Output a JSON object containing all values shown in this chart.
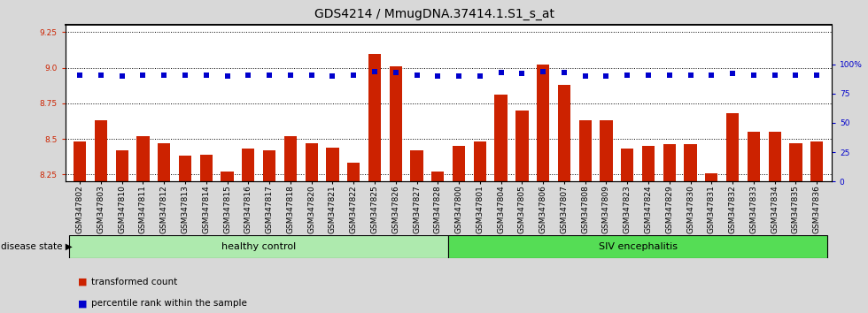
{
  "title": "GDS4214 / MmugDNA.37414.1.S1_s_at",
  "samples": [
    "GSM347802",
    "GSM347803",
    "GSM347810",
    "GSM347811",
    "GSM347812",
    "GSM347813",
    "GSM347814",
    "GSM347815",
    "GSM347816",
    "GSM347817",
    "GSM347818",
    "GSM347820",
    "GSM347821",
    "GSM347822",
    "GSM347825",
    "GSM347826",
    "GSM347827",
    "GSM347828",
    "GSM347800",
    "GSM347801",
    "GSM347804",
    "GSM347805",
    "GSM347806",
    "GSM347807",
    "GSM347808",
    "GSM347809",
    "GSM347823",
    "GSM347824",
    "GSM347829",
    "GSM347830",
    "GSM347831",
    "GSM347832",
    "GSM347833",
    "GSM347834",
    "GSM347835",
    "GSM347836"
  ],
  "bar_values": [
    8.48,
    8.63,
    8.42,
    8.52,
    8.47,
    8.38,
    8.39,
    8.27,
    8.43,
    8.42,
    8.52,
    8.47,
    8.44,
    8.33,
    9.1,
    9.01,
    8.42,
    8.27,
    8.45,
    8.48,
    8.81,
    8.7,
    9.02,
    8.88,
    8.63,
    8.63,
    8.43,
    8.45,
    8.46,
    8.46,
    8.26,
    8.68,
    8.55,
    8.55,
    8.47,
    8.48
  ],
  "percentile_values": [
    91,
    91,
    90,
    91,
    91,
    91,
    91,
    90,
    91,
    91,
    91,
    91,
    90,
    91,
    94,
    93,
    91,
    90,
    90,
    90,
    93,
    92,
    94,
    93,
    90,
    90,
    91,
    91,
    91,
    91,
    91,
    92,
    91,
    91,
    91,
    91
  ],
  "healthy_control_count": 18,
  "ylim_left": [
    8.2,
    9.3
  ],
  "ylim_right": [
    0,
    133.33
  ],
  "yticks_left": [
    8.25,
    8.5,
    8.75,
    9.0,
    9.25
  ],
  "yticks_right": [
    0,
    25,
    50,
    75,
    100
  ],
  "bar_color": "#cc2200",
  "percentile_color": "#0000cc",
  "healthy_color": "#aeeaae",
  "siv_color": "#55dd55",
  "label_healthy": "healthy control",
  "label_siv": "SIV encephalitis",
  "label_disease": "disease state",
  "legend_bar": "transformed count",
  "legend_pct": "percentile rank within the sample",
  "background_color": "#d8d8d8",
  "plot_bg": "#ffffff",
  "title_fontsize": 10,
  "tick_fontsize": 6.5
}
